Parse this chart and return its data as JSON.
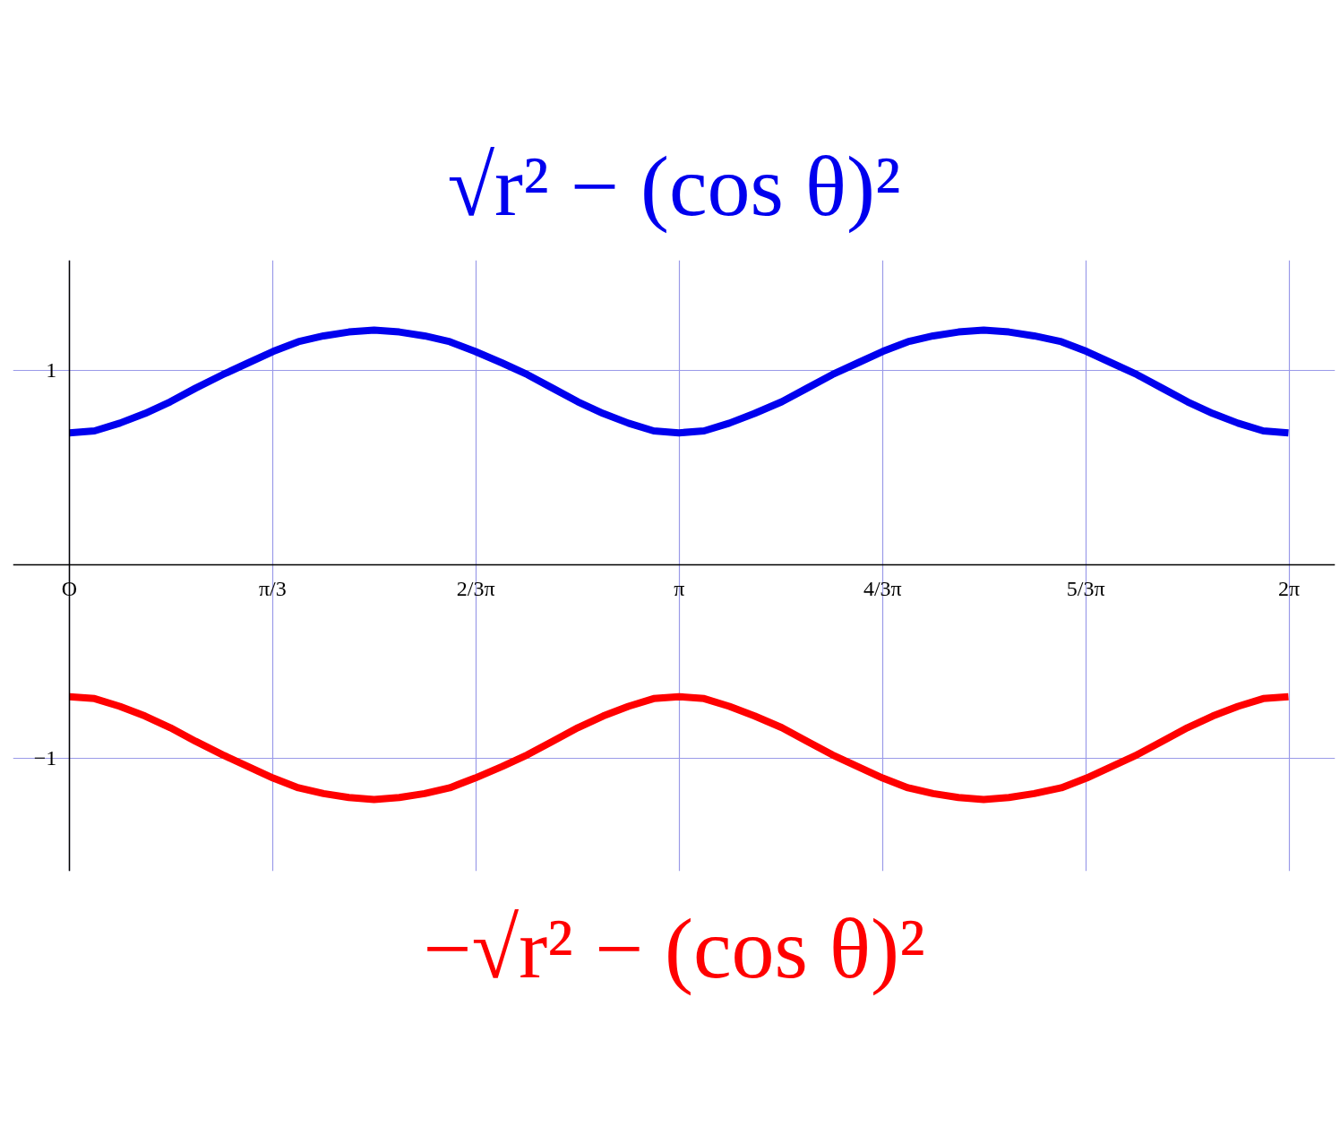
{
  "chart_data": {
    "type": "line",
    "x": [
      0,
      0.13,
      0.26,
      0.39,
      0.52,
      0.65,
      0.79,
      0.92,
      1.05,
      1.18,
      1.31,
      1.44,
      1.57,
      1.7,
      1.83,
      1.96,
      2.09,
      2.23,
      2.36,
      2.49,
      2.62,
      2.75,
      2.88,
      3.01,
      3.14,
      3.27,
      3.4,
      3.53,
      3.67,
      3.8,
      3.93,
      4.06,
      4.19,
      4.32,
      4.45,
      4.58,
      4.71,
      4.84,
      4.97,
      5.11,
      5.24,
      5.37,
      5.5,
      5.63,
      5.76,
      5.89,
      6.02,
      6.15,
      6.28
    ],
    "series": [
      {
        "name": "√r² − (cos θ)²",
        "color": "#0000ee",
        "values": [
          0.68,
          0.69,
          0.73,
          0.78,
          0.84,
          0.91,
          0.98,
          1.04,
          1.1,
          1.15,
          1.18,
          1.2,
          1.21,
          1.2,
          1.18,
          1.15,
          1.1,
          1.04,
          0.98,
          0.91,
          0.84,
          0.78,
          0.73,
          0.69,
          0.68,
          0.69,
          0.73,
          0.78,
          0.84,
          0.91,
          0.98,
          1.04,
          1.1,
          1.15,
          1.18,
          1.2,
          1.21,
          1.2,
          1.18,
          1.15,
          1.1,
          1.04,
          0.98,
          0.91,
          0.84,
          0.78,
          0.73,
          0.69,
          0.68
        ]
      },
      {
        "name": "−√r² − (cos θ)²",
        "color": "#ff0000",
        "values": [
          -0.68,
          -0.69,
          -0.73,
          -0.78,
          -0.84,
          -0.91,
          -0.98,
          -1.04,
          -1.1,
          -1.15,
          -1.18,
          -1.2,
          -1.21,
          -1.2,
          -1.18,
          -1.15,
          -1.1,
          -1.04,
          -0.98,
          -0.91,
          -0.84,
          -0.78,
          -0.73,
          -0.69,
          -0.68,
          -0.69,
          -0.73,
          -0.78,
          -0.84,
          -0.91,
          -0.98,
          -1.04,
          -1.1,
          -1.15,
          -1.18,
          -1.2,
          -1.21,
          -1.2,
          -1.18,
          -1.15,
          -1.1,
          -1.04,
          -0.98,
          -0.91,
          -0.84,
          -0.78,
          -0.73,
          -0.69,
          -0.68
        ]
      }
    ],
    "xlim": [
      -0.29,
      6.52
    ],
    "ylim": [
      -1.58,
      1.57
    ],
    "xticks": [
      {
        "value": 0,
        "label": "O"
      },
      {
        "value": 1.047,
        "label": "π/3"
      },
      {
        "value": 2.094,
        "label": "2/3π"
      },
      {
        "value": 3.142,
        "label": "π"
      },
      {
        "value": 4.189,
        "label": "4/3π"
      },
      {
        "value": 5.236,
        "label": "5/3π"
      },
      {
        "value": 6.283,
        "label": "2π"
      }
    ],
    "yticks": [
      {
        "value": -1,
        "label": "−1"
      },
      {
        "value": 1,
        "label": "1"
      }
    ],
    "grid": true,
    "line_style": "solid"
  }
}
